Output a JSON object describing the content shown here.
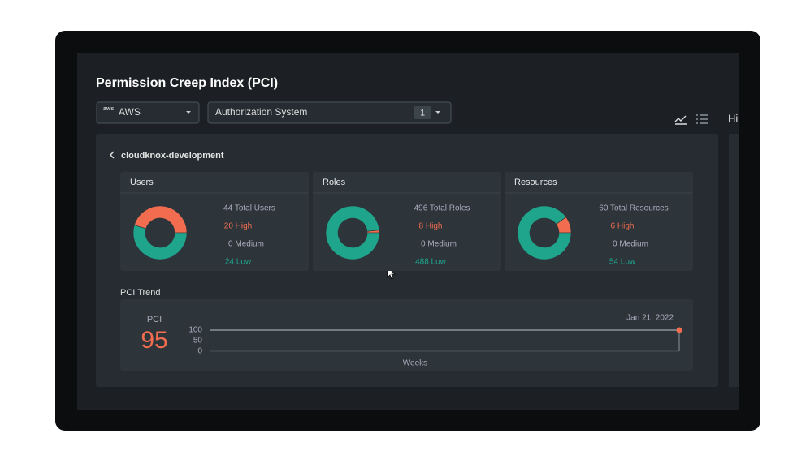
{
  "header": {
    "title": "Permission Creep Index (PCI)"
  },
  "filters": {
    "provider": "AWS",
    "provider_icon": "aws",
    "system": "Authorization System",
    "system_count": "1"
  },
  "side_label": "Hi",
  "breadcrumb": "cloudknox-development",
  "cards": [
    {
      "title": "Users",
      "total_label": "44 Total Users",
      "segments": {
        "values": [
          20,
          0,
          24
        ],
        "value_labels": [
          "20 High",
          "0 Medium",
          "24 Low"
        ],
        "colors": [
          "#f26d4f",
          "#8a949b",
          "#1ea58c"
        ]
      }
    },
    {
      "title": "Roles",
      "total_label": "496 Total Roles",
      "segments": {
        "values": [
          8,
          0,
          488
        ],
        "value_labels": [
          "8 High",
          "0 Medium",
          "488 Low"
        ],
        "colors": [
          "#f26d4f",
          "#8a949b",
          "#1ea58c"
        ]
      }
    },
    {
      "title": "Resources",
      "total_label": "60 Total Resources",
      "segments": {
        "values": [
          6,
          0,
          54
        ],
        "value_labels": [
          "6 High",
          "0 Medium",
          "54 Low"
        ],
        "colors": [
          "#f26d4f",
          "#8a949b",
          "#1ea58c"
        ]
      }
    }
  ],
  "trend": {
    "title": "PCI Trend",
    "pci_label": "PCI",
    "pci": "95",
    "ylim": [
      0,
      100
    ],
    "yticks": [
      0,
      50,
      100
    ],
    "x_label": "Weeks",
    "point": {
      "label": "Jan 21, 2022",
      "value": 100,
      "color": "#f26d4f"
    }
  }
}
